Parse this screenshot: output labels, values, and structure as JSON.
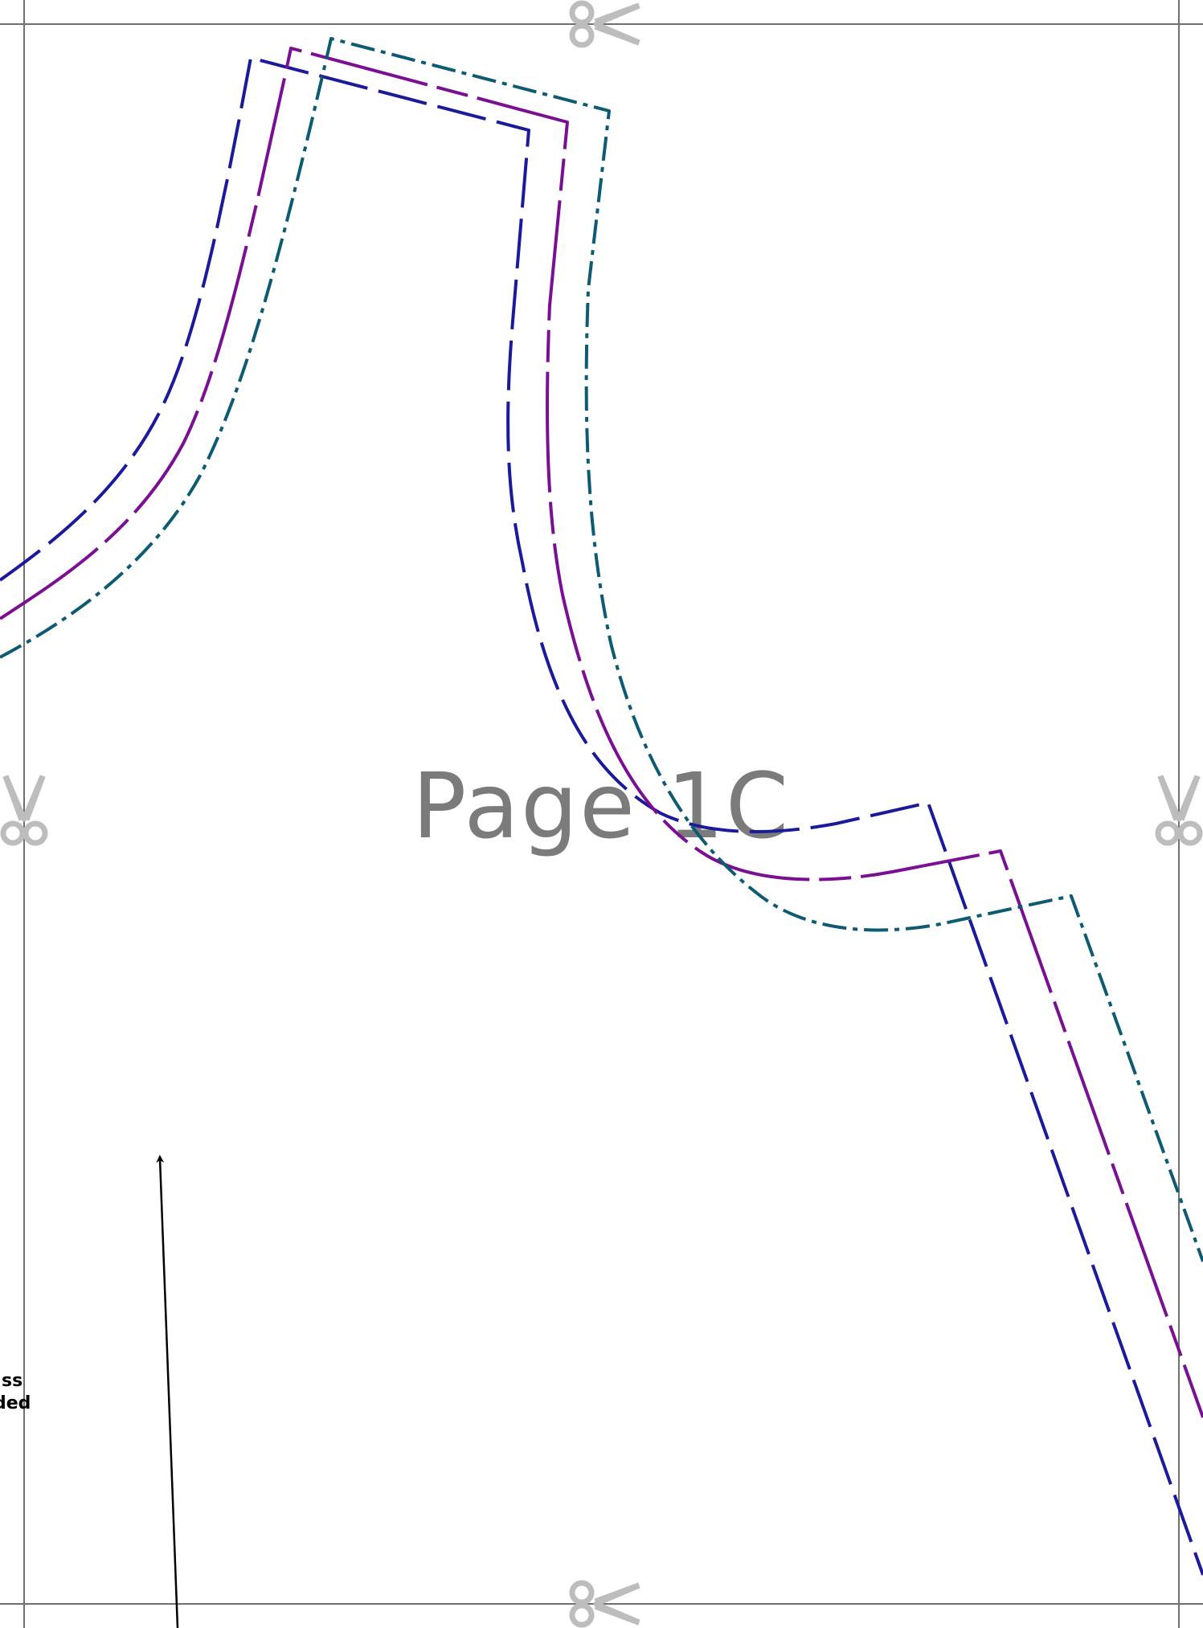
{
  "page_label": "Page 1C",
  "partial_note": {
    "line1": "ss",
    "line2": "ded"
  },
  "colors": {
    "trim": "#6f6f6f",
    "scissors": "#bdbdbd",
    "size_line_1": "#1b1a9a",
    "size_line_2": "#7a0f93",
    "size_line_3": "#0d5b73",
    "grain": "#000000",
    "label": "#7b7b7b"
  },
  "icons": {
    "scissors": "scissors-icon",
    "grainline_arrow": "arrow-up-icon"
  }
}
